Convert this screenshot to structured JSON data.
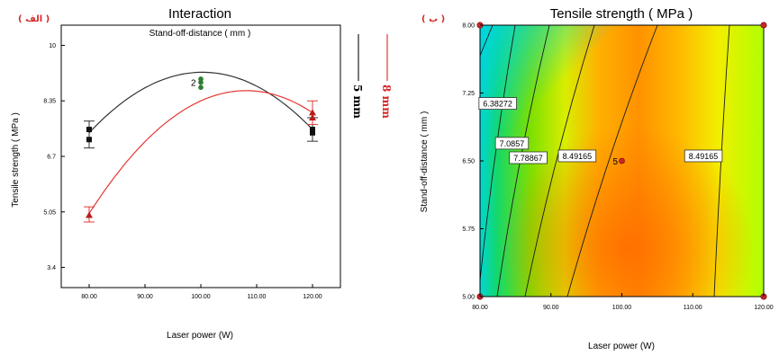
{
  "chart_data": [
    {
      "type": "line",
      "tag": "( الف )",
      "title": "Interaction",
      "subtitle": "Stand-off-distance ( mm )",
      "xlabel": "Laser power (W)",
      "ylabel": "Tensile strength ( MPa )",
      "xlim": [
        75,
        125
      ],
      "ylim": [
        2.8,
        10.6
      ],
      "x_ticks": [
        "80.00",
        "90.00",
        "100.00",
        "110.00",
        "120.00"
      ],
      "y_ticks": [
        "3.4",
        "5.05",
        "6.7",
        "8.35",
        "10"
      ],
      "replicate_label": "2",
      "series": [
        {
          "name": "5 mm",
          "color": "#333333",
          "curve_x": [
            80,
            100,
            120
          ],
          "curve_y": [
            7.4,
            9.2,
            7.5
          ],
          "points_x": [
            80,
            80,
            120,
            120
          ],
          "points_y": [
            7.2,
            7.5,
            7.5,
            7.4
          ],
          "error_bars": [
            {
              "x": 80,
              "low": 6.95,
              "high": 7.75
            },
            {
              "x": 120,
              "low": 7.15,
              "high": 7.85
            }
          ]
        },
        {
          "name": "8 mm",
          "color": "#e53935",
          "curve_x": [
            80,
            100,
            120
          ],
          "curve_y": [
            5.0,
            8.35,
            8.0
          ],
          "points_x": [
            80,
            120,
            120
          ],
          "points_y": [
            4.95,
            7.85,
            8.0
          ],
          "error_bars": [
            {
              "x": 80,
              "low": 4.75,
              "high": 5.2
            },
            {
              "x": 120,
              "low": 7.65,
              "high": 8.35
            }
          ]
        }
      ],
      "center_points": {
        "x": 100,
        "y": [
          8.75,
          8.9,
          9.0
        ],
        "color": "#2e7d32"
      }
    },
    {
      "type": "heatmap",
      "tag": "( ب )",
      "title": "Tensile strength ( MPa )",
      "xlabel": "Laser power (W)",
      "ylabel": "Stand-off-distance ( mm )",
      "xlim": [
        80,
        120
      ],
      "ylim": [
        5,
        8
      ],
      "x_ticks": [
        "80.00",
        "90.00",
        "100.00",
        "110.00",
        "120.00"
      ],
      "y_ticks": [
        "5.00",
        "5.75",
        "6.50",
        "7.25",
        "8.00"
      ],
      "contour_labels": [
        {
          "text": "6.38272",
          "x": 82.5,
          "y": 7.13
        },
        {
          "text": "7.0857",
          "x": 84.5,
          "y": 6.69
        },
        {
          "text": "7.78867",
          "x": 86.8,
          "y": 6.53
        },
        {
          "text": "8.49165",
          "x": 93.7,
          "y": 6.55
        },
        {
          "text": "8.49165",
          "x": 111.5,
          "y": 6.55
        }
      ],
      "center_point": {
        "x": 100,
        "y": 6.5,
        "label": "5"
      },
      "design_points": [
        [
          80,
          5
        ],
        [
          80,
          8
        ],
        [
          120,
          5
        ],
        [
          120,
          8
        ]
      ]
    }
  ]
}
